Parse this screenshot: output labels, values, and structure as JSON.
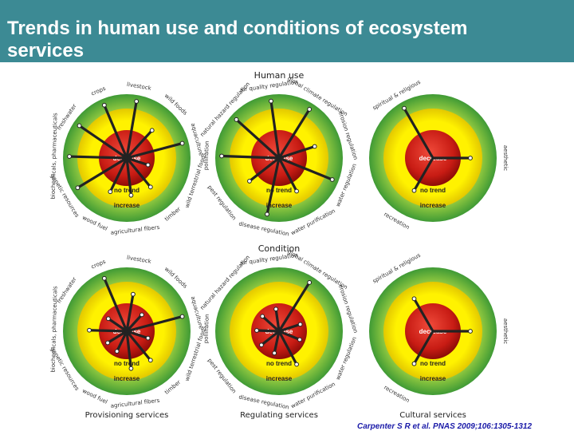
{
  "title": "Trends in human use and conditions of ecosystem services",
  "row_titles": [
    "Human use",
    "Condition"
  ],
  "column_titles": [
    "Provisioning services",
    "Regulating services",
    "Cultural services"
  ],
  "band_labels": {
    "inner": "decrease",
    "middle": "no trend",
    "outer": "increase"
  },
  "citation": "Carpenter S R et al. PNAS 2009;106:1305-1312",
  "colors": {
    "title_bar": "#3c8a94",
    "decrease": "#d42020",
    "no_trend": "#f2e600",
    "increase": "#52a83c",
    "spoke": "#222222",
    "citation": "#1a1aa8"
  },
  "diagrams": [
    {
      "section": "human_use",
      "category": "provisioning",
      "services": [
        "crops",
        "livestock",
        "wild foods",
        "aquaculture",
        "wild terrestrial foods",
        "timber",
        "agricultural fibers",
        "wood fuel",
        "genetic resources",
        "biochemicals, pharmaceuticals",
        "freshwater"
      ],
      "trends": [
        "increase",
        "increase",
        "no_trend",
        "increase",
        "decrease",
        "no_trend",
        "no_trend",
        "no_trend",
        "increase",
        "increase",
        "increase"
      ]
    },
    {
      "section": "human_use",
      "category": "regulating",
      "services": [
        "air quality regulation",
        "global climate regulation",
        "erosion regulation",
        "water regulation",
        "water purification",
        "disease regulation",
        "pest regulation",
        "pollination",
        "natural hazard regulation"
      ],
      "trends": [
        "increase",
        "increase",
        "no_trend",
        "increase",
        "no_trend",
        "increase",
        "no_trend",
        "increase",
        "increase"
      ]
    },
    {
      "section": "human_use",
      "category": "cultural",
      "services": [
        "spiritual & religious",
        "aesthetic",
        "recreation"
      ],
      "trends": [
        "increase",
        "no_trend",
        "no_trend"
      ]
    },
    {
      "section": "condition",
      "category": "provisioning",
      "services": [
        "crops",
        "livestock",
        "wild foods",
        "aquaculture",
        "wild terrestrial foods",
        "timber",
        "agricultural fibers",
        "wood fuel",
        "genetic resources",
        "biochemicals, pharmaceuticals",
        "freshwater"
      ],
      "trends": [
        "increase",
        "no_trend",
        "decrease",
        "increase",
        "decrease",
        "no_trend",
        "no_trend",
        "decrease",
        "decrease",
        "no_trend",
        "decrease"
      ]
    },
    {
      "section": "condition",
      "category": "regulating",
      "services": [
        "air quality regulation",
        "global climate regulation",
        "erosion regulation",
        "water regulation",
        "water purification",
        "disease regulation",
        "pest regulation",
        "pollination",
        "natural hazard regulation"
      ],
      "trends": [
        "decrease",
        "increase",
        "decrease",
        "decrease",
        "no_trend",
        "decrease",
        "decrease",
        "decrease",
        "decrease"
      ]
    },
    {
      "section": "condition",
      "category": "cultural",
      "services": [
        "spiritual & religious",
        "aesthetic",
        "recreation"
      ],
      "trends": [
        "no_trend",
        "no_trend",
        "no_trend"
      ]
    }
  ]
}
